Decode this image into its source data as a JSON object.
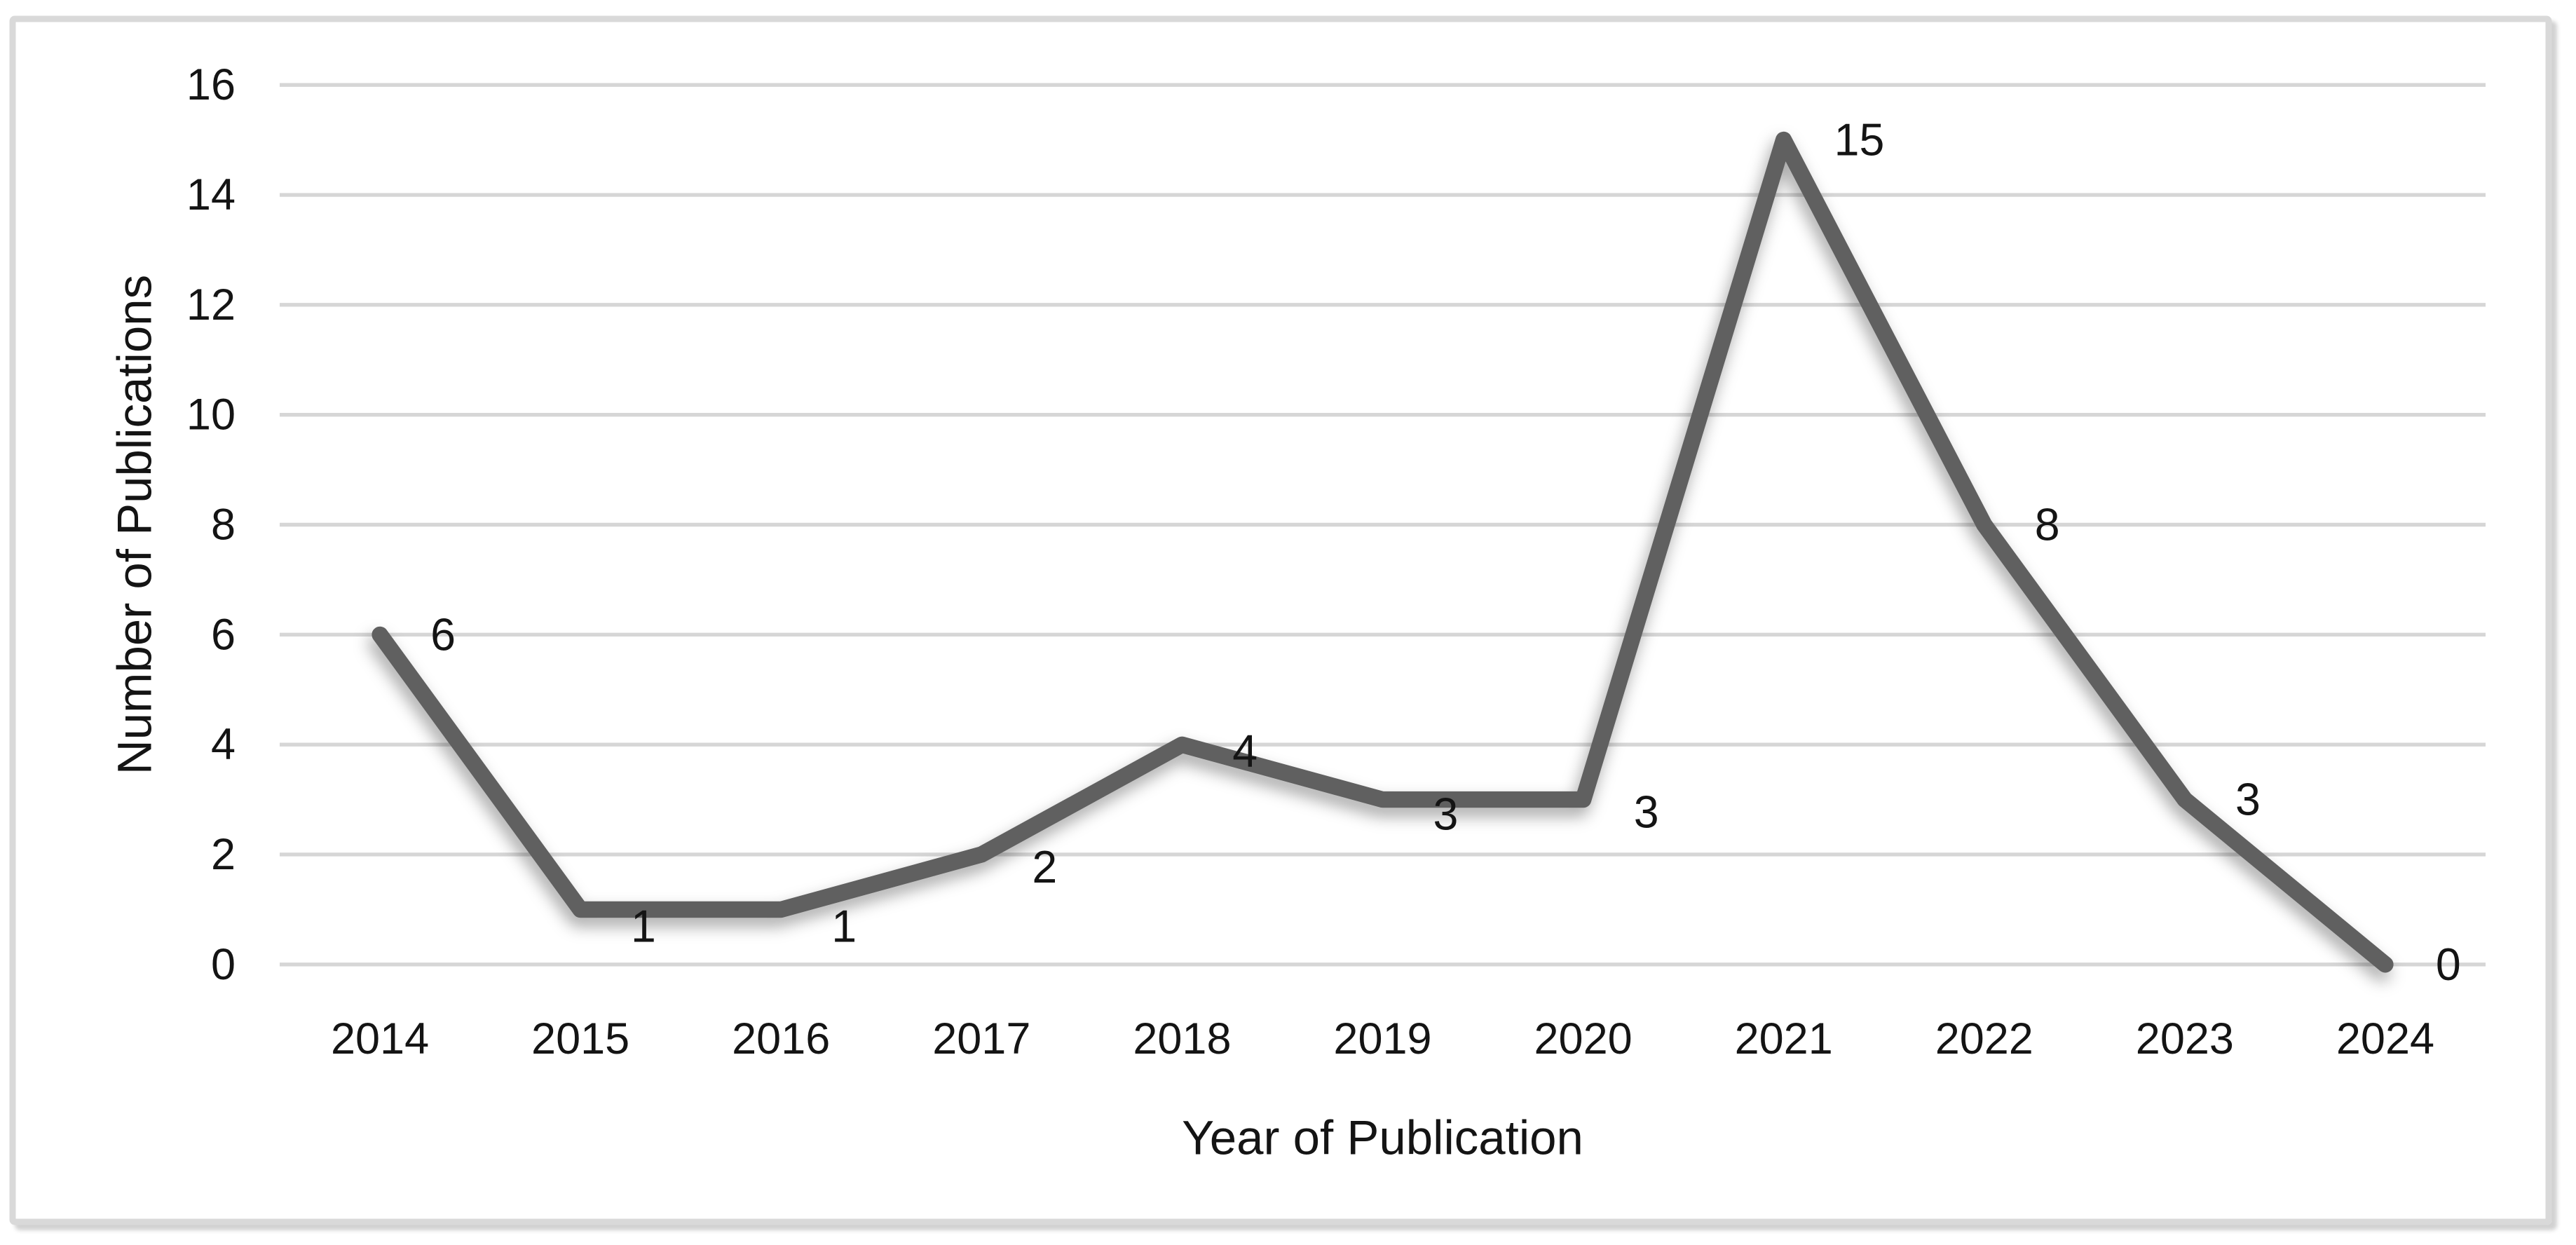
{
  "chart_data": {
    "type": "line",
    "title": "",
    "categories": [
      "2014",
      "2015",
      "2016",
      "2017",
      "2018",
      "2019",
      "2020",
      "2021",
      "2022",
      "2023",
      "2024"
    ],
    "series": [
      {
        "name": "Number of Publications",
        "values": [
          6,
          1,
          1,
          2,
          4,
          3,
          3,
          15,
          8,
          3,
          0
        ]
      }
    ],
    "data_labels": [
      "6",
      "1",
      "1",
      "2",
      "4",
      "3",
      "3",
      "15",
      "8",
      "3",
      "0"
    ],
    "xlabel": "Year of Publication",
    "ylabel": "Number of Publications",
    "ylim": [
      0,
      16
    ],
    "yticks": [
      0,
      2,
      4,
      6,
      8,
      10,
      12,
      14,
      16
    ],
    "grid": true,
    "legend": "none",
    "colors": {
      "line": "#606060",
      "gridline": "#D6D6D6",
      "frame": "#D9D9D9",
      "text": "#141414",
      "background": "#FFFFFF"
    },
    "layout_hints": {
      "label_dx": 24,
      "label_dy": [
        0,
        8,
        8,
        6,
        3,
        7,
        6,
        0,
        0,
        0,
        0
      ],
      "line_width": 7.8,
      "shadow": true
    }
  }
}
